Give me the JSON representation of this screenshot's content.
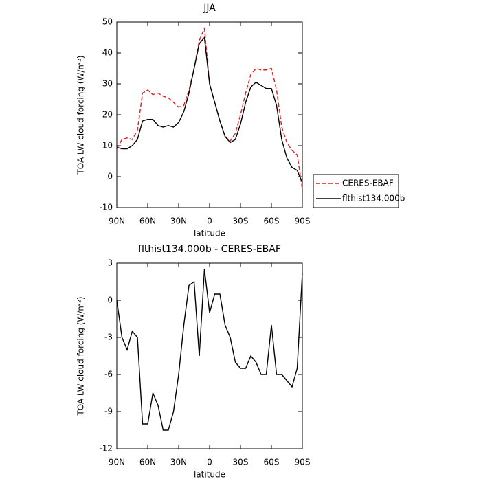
{
  "chart_data": [
    {
      "type": "line",
      "title": "JJA",
      "xlabel": "latitude",
      "ylabel": "TOA LW cloud forcing (W/m²)",
      "x": [
        90,
        85,
        80,
        75,
        70,
        65,
        60,
        55,
        50,
        45,
        40,
        35,
        30,
        25,
        20,
        15,
        10,
        5,
        0,
        -5,
        -10,
        -15,
        -20,
        -25,
        -30,
        -35,
        -40,
        -45,
        -50,
        -55,
        -60,
        -65,
        -70,
        -75,
        -80,
        -85,
        -90
      ],
      "series": [
        {
          "name": "CERES-EBAF",
          "color": "#e41a1c",
          "linestyle": "dashed",
          "values": [
            9,
            12,
            12.5,
            12,
            15,
            27,
            28,
            26.5,
            27,
            26,
            25.5,
            24,
            22.5,
            23,
            28,
            35,
            44,
            48,
            30,
            24,
            18,
            13,
            11.5,
            14,
            20,
            27,
            33,
            35,
            34.5,
            34.5,
            35,
            28,
            16,
            11,
            8.5,
            7,
            -4
          ]
        },
        {
          "name": "flthist134.000b",
          "color": "#000000",
          "linestyle": "solid",
          "values": [
            9.5,
            9,
            9,
            10,
            12,
            18,
            18.5,
            18.5,
            16.5,
            16,
            16.5,
            16,
            17.5,
            21,
            27,
            35,
            43,
            45,
            30,
            24,
            18,
            13,
            11,
            12,
            17,
            24,
            29,
            30.5,
            29.5,
            28.5,
            28.5,
            23,
            12,
            6,
            3,
            2,
            -2
          ]
        }
      ],
      "xlim": [
        90,
        -90
      ],
      "xticks": [
        {
          "value": 90,
          "label": "90N"
        },
        {
          "value": 60,
          "label": "60N"
        },
        {
          "value": 30,
          "label": "30N"
        },
        0,
        {
          "value": -30,
          "label": "30S"
        },
        {
          "value": -60,
          "label": "60S"
        },
        {
          "value": -90,
          "label": "90S"
        }
      ],
      "ylim": [
        -10,
        50
      ],
      "yticks": [
        -10,
        0,
        10,
        20,
        30,
        40,
        50
      ],
      "legend": "right"
    },
    {
      "type": "line",
      "title": "flthist134.000b - CERES-EBAF",
      "xlabel": "latitude",
      "ylabel": "TOA LW cloud forcing (W/m²)",
      "x": [
        90,
        85,
        80,
        75,
        70,
        65,
        60,
        55,
        50,
        45,
        40,
        35,
        30,
        25,
        20,
        15,
        10,
        5,
        0,
        -5,
        -10,
        -15,
        -20,
        -25,
        -30,
        -35,
        -40,
        -45,
        -50,
        -55,
        -60,
        -65,
        -70,
        -75,
        -80,
        -85,
        -90
      ],
      "color": "#000000",
      "values": [
        0,
        -3,
        -4,
        -2.5,
        -3,
        -10,
        -10,
        -7.5,
        -8.5,
        -10.5,
        -10.5,
        -9,
        -6,
        -2,
        1.2,
        1.5,
        -4.5,
        2.5,
        -1,
        0.5,
        0.5,
        -2,
        -3,
        -5,
        -5.5,
        -5.5,
        -4.5,
        -5,
        -6,
        -6,
        -2,
        -6,
        -6,
        -6.5,
        -7,
        -5.5,
        2.2
      ],
      "xlim": [
        90,
        -90
      ],
      "xticks": [
        {
          "value": 90,
          "label": "90N"
        },
        {
          "value": 60,
          "label": "60N"
        },
        {
          "value": 30,
          "label": "30N"
        },
        0,
        {
          "value": -30,
          "label": "30S"
        },
        {
          "value": -60,
          "label": "60S"
        },
        {
          "value": -90,
          "label": "90S"
        }
      ],
      "ylim": [
        -12,
        3
      ],
      "yticks": [
        -12,
        -9,
        -6,
        -3,
        0,
        3
      ]
    }
  ]
}
